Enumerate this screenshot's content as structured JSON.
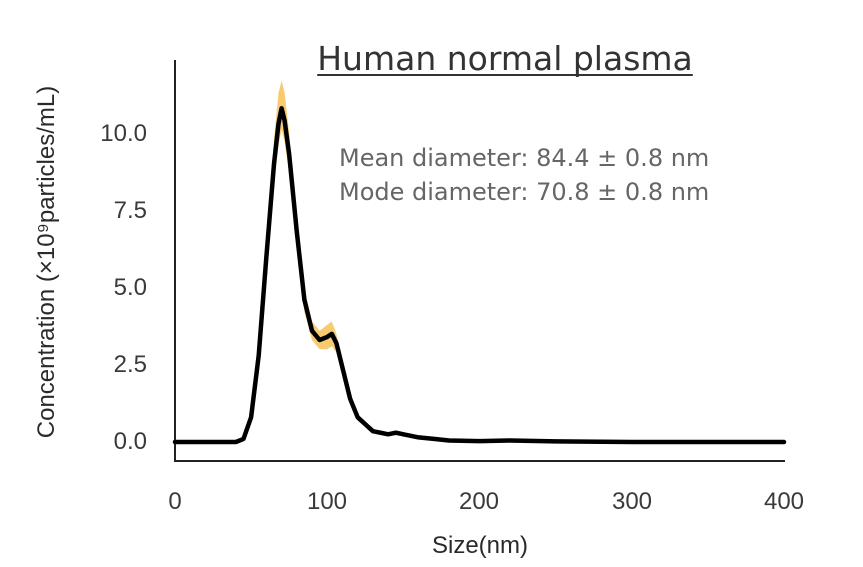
{
  "chart_data": {
    "type": "line",
    "title": "Human normal plasma",
    "xlabel": "Size(nm)",
    "ylabel": "Concentration (×10⁹particles/mL)",
    "xlim": [
      0,
      400
    ],
    "ylim": [
      -0.6,
      12.3
    ],
    "xticks": [
      "0",
      "100",
      "200",
      "300",
      "400"
    ],
    "yticks": [
      "0.0",
      "2.5",
      "5.0",
      "7.5",
      "10.0"
    ],
    "grid": false,
    "annotations": [
      "Mean diameter: 84.4 ± 0.8 nm",
      "Mode diameter: 70.8 ± 0.8 nm"
    ],
    "colors": {
      "line": "#000000",
      "band": "#f5b942"
    },
    "series": [
      {
        "x": [
          0,
          40,
          45,
          50,
          55,
          60,
          65,
          68,
          70,
          72,
          75,
          80,
          85,
          90,
          95,
          100,
          103,
          106,
          110,
          115,
          120,
          130,
          140,
          145,
          150,
          160,
          170,
          180,
          200,
          220,
          250,
          300,
          400
        ],
        "y": [
          0,
          0,
          0.1,
          0.8,
          2.8,
          6.0,
          9.0,
          10.3,
          10.8,
          10.4,
          9.3,
          6.8,
          4.6,
          3.6,
          3.3,
          3.4,
          3.5,
          3.2,
          2.4,
          1.4,
          0.8,
          0.35,
          0.25,
          0.3,
          0.25,
          0.15,
          0.1,
          0.05,
          0.03,
          0.05,
          0.02,
          0,
          0
        ],
        "upper": [
          0,
          0,
          0.12,
          0.9,
          3.0,
          6.4,
          9.8,
          11.3,
          11.7,
          11.3,
          10.0,
          7.3,
          5.0,
          3.9,
          3.6,
          3.8,
          3.9,
          3.5,
          2.6,
          1.55,
          0.9,
          0.42,
          0.3,
          0.38,
          0.32,
          0.2,
          0.13,
          0.08,
          0.06,
          0.08,
          0.05,
          0.01,
          0
        ],
        "lower": [
          0,
          0,
          0.08,
          0.7,
          2.6,
          5.6,
          8.3,
          9.6,
          10.1,
          9.7,
          8.7,
          6.3,
          4.2,
          3.3,
          3.0,
          3.0,
          3.1,
          2.9,
          2.2,
          1.25,
          0.7,
          0.28,
          0.2,
          0.22,
          0.18,
          0.1,
          0.07,
          0.02,
          0,
          0.02,
          0,
          0,
          0
        ]
      }
    ]
  }
}
